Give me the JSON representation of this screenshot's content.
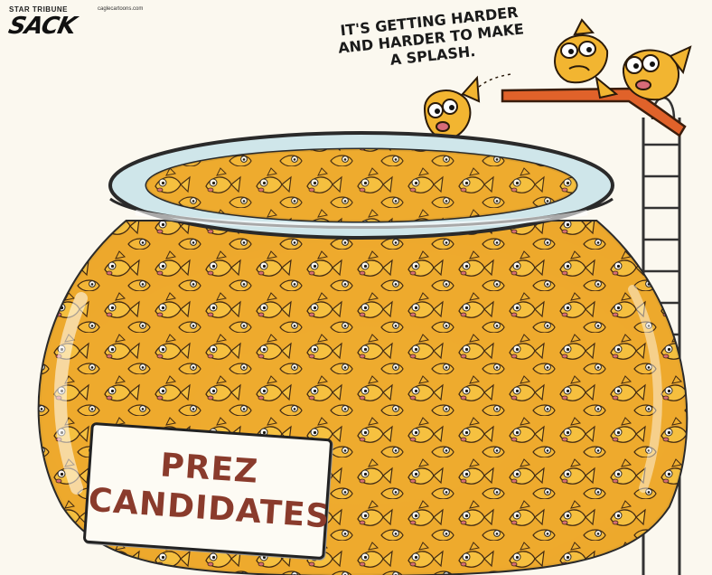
{
  "credit": {
    "newspaper": "STAR TRIBUNE",
    "site": "caglecartoons.com",
    "artist_signature": "SACK"
  },
  "speech_bubble": {
    "lines": [
      "IT'S GETTING HARDER",
      "AND HARDER TO MAKE",
      "A SPLASH."
    ]
  },
  "bowl_label": {
    "line1": "PREZ",
    "line2": "CANDIDATES"
  },
  "colors": {
    "fish": "#f2b531",
    "fish_shadow": "#d8891a",
    "diving_board": "#e0622a",
    "glass": "#cfe6ea",
    "label_text": "#8a3b2c"
  }
}
